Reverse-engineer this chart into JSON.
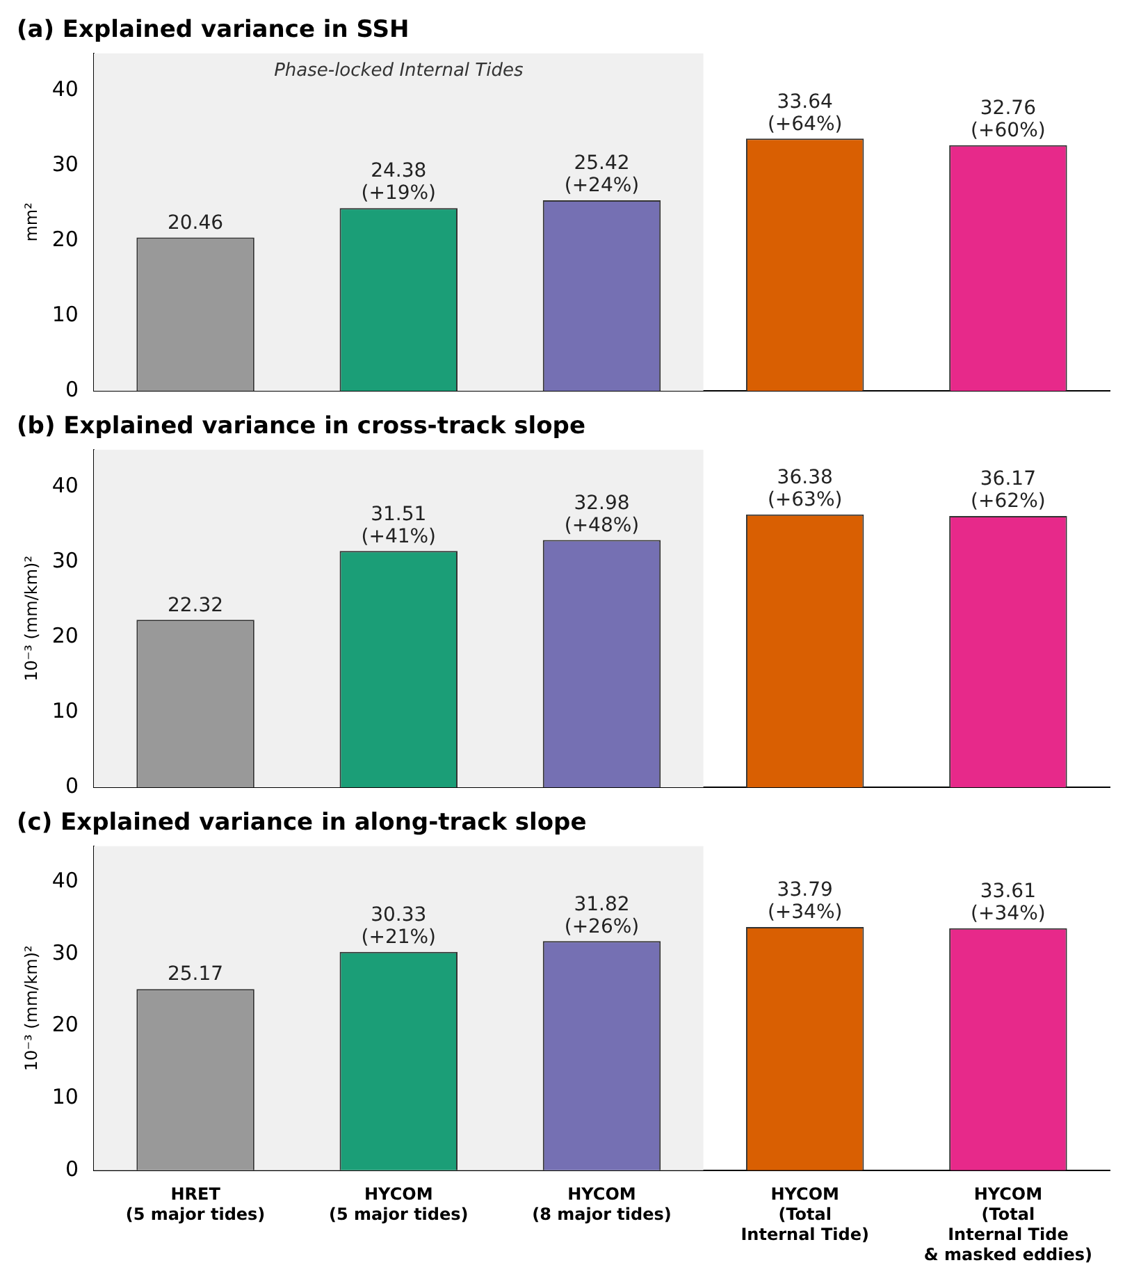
{
  "chart_data": [
    {
      "type": "bar",
      "title": "(a) Explained variance in SSH",
      "ylabel": "mm²",
      "categories": [
        "HRET\n(5 major tides)",
        "HYCOM\n(5 major tides)",
        "HYCOM\n(8 major tides)",
        "HYCOM\n(Total\nInternal Tide)",
        "HYCOM\n(Total\nInternal Tide\n& masked eddies)"
      ],
      "values": [
        20.46,
        24.38,
        25.42,
        33.64,
        32.76
      ],
      "colors": [
        "#999999",
        "#1b9e77",
        "#7570b3",
        "#d95f02",
        "#e7298a"
      ],
      "value_labels": [
        "20.46",
        "24.38\n(+19%)",
        "25.42\n(+24%)",
        "33.64\n(+64%)",
        "32.76\n(+60%)"
      ],
      "ylim": [
        0,
        45
      ],
      "yticks": [
        0,
        10,
        20,
        30,
        40
      ],
      "grid": false,
      "tick_labels": "y",
      "bands": [
        {
          "axis": "x",
          "from": "HRET\n(5 major tides)",
          "to": "HYCOM\n(8 major tides)",
          "label": "Phase-locked Internal Tides",
          "color": "#f0f0f0"
        }
      ]
    },
    {
      "type": "bar",
      "title": "(b) Explained variance in cross-track slope",
      "ylabel": "10⁻³ (mm/km)²",
      "categories": [
        "HRET\n(5 major tides)",
        "HYCOM\n(5 major tides)",
        "HYCOM\n(8 major tides)",
        "HYCOM\n(Total\nInternal Tide)",
        "HYCOM\n(Total\nInternal Tide\n& masked eddies)"
      ],
      "values": [
        22.32,
        31.51,
        32.98,
        36.38,
        36.17
      ],
      "colors": [
        "#999999",
        "#1b9e77",
        "#7570b3",
        "#d95f02",
        "#e7298a"
      ],
      "value_labels": [
        "22.32",
        "31.51\n(+41%)",
        "32.98\n(+48%)",
        "36.38\n(+63%)",
        "36.17\n(+62%)"
      ],
      "ylim": [
        0,
        45
      ],
      "yticks": [
        0,
        10,
        20,
        30,
        40
      ],
      "grid": false,
      "tick_labels": "y",
      "bands": [
        {
          "axis": "x",
          "from": "HRET\n(5 major tides)",
          "to": "HYCOM\n(8 major tides)",
          "color": "#f0f0f0"
        }
      ]
    },
    {
      "type": "bar",
      "title": "(c) Explained variance in along-track slope",
      "ylabel": "10⁻³ (mm/km)²",
      "categories": [
        "HRET\n(5 major tides)",
        "HYCOM\n(5 major tides)",
        "HYCOM\n(8 major tides)",
        "HYCOM\n(Total\nInternal Tide)",
        "HYCOM\n(Total\nInternal Tide\n& masked eddies)"
      ],
      "values": [
        25.17,
        30.33,
        31.82,
        33.79,
        33.61
      ],
      "colors": [
        "#999999",
        "#1b9e77",
        "#7570b3",
        "#d95f02",
        "#e7298a"
      ],
      "value_labels": [
        "25.17",
        "30.33\n(+21%)",
        "31.82\n(+26%)",
        "33.79\n(+34%)",
        "33.61\n(+34%)"
      ],
      "ylim": [
        0,
        45
      ],
      "yticks": [
        0,
        10,
        20,
        30,
        40
      ],
      "grid": false,
      "bands": [
        {
          "axis": "x",
          "from": "HRET\n(5 major tides)",
          "to": "HYCOM\n(8 major tides)",
          "color": "#f0f0f0"
        }
      ]
    }
  ]
}
